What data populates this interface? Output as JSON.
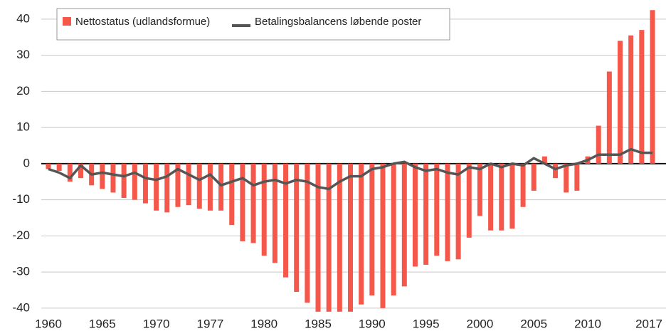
{
  "chart_data": {
    "type": "bar_line",
    "categories": [
      "1960",
      null,
      null,
      null,
      null,
      "1965",
      null,
      null,
      null,
      null,
      "1970",
      null,
      null,
      null,
      null,
      "1977",
      null,
      null,
      null,
      null,
      "1980",
      null,
      null,
      null,
      null,
      "1985",
      null,
      null,
      null,
      null,
      "1990",
      null,
      null,
      null,
      null,
      "1995",
      null,
      null,
      null,
      null,
      "2000",
      null,
      null,
      null,
      null,
      "2005",
      null,
      null,
      null,
      null,
      "2010",
      null,
      null,
      null,
      null,
      null,
      "2017"
    ],
    "series": [
      {
        "name": "Nettostatus (udlandsformue)",
        "type": "bar",
        "color": "#f5584a",
        "values": [
          -1.5,
          -2,
          -5,
          -4,
          -6,
          -7,
          -8,
          -9.5,
          -10,
          -11,
          -13,
          -13.5,
          -12,
          -11.5,
          -12.5,
          -13,
          -13,
          -17,
          -21.5,
          -22,
          -25.5,
          -27.5,
          -31.5,
          -35.5,
          -38.5,
          -41,
          -41,
          -41,
          -41,
          -39,
          -36.5,
          -40,
          -36.5,
          -34,
          -28.5,
          -28,
          -25.5,
          -27,
          -26.5,
          -20.5,
          -14.5,
          -18.5,
          -18.5,
          -18,
          -12,
          -7.5,
          2,
          -4,
          -8,
          -7.5,
          2,
          10.5,
          25.5,
          34,
          35.5,
          37,
          42.5
        ]
      },
      {
        "name": "Betalingsbalancens løbende poster",
        "type": "line",
        "color": "#555555",
        "values": [
          -1.5,
          -2.5,
          -4,
          -0.5,
          -3,
          -2.5,
          -3,
          -3.5,
          -2.5,
          -4,
          -4.5,
          -3.5,
          -1.5,
          -3,
          -4.5,
          -3,
          -6,
          -5,
          -4,
          -6,
          -5,
          -4.5,
          -5.5,
          -4.5,
          -5,
          -6.5,
          -7,
          -5,
          -3.5,
          -3.5,
          -1.5,
          -1,
          0,
          0.5,
          -1,
          -2,
          -1.5,
          -2.5,
          -3,
          -1,
          -1.5,
          0,
          -1,
          0,
          -0.5,
          1.5,
          0,
          -1.5,
          -0.5,
          0,
          1,
          2.5,
          2.5,
          2.5,
          4,
          3,
          3
        ]
      }
    ],
    "ylim": [
      -42.4,
      45.3
    ],
    "yticks": [
      -40,
      -30,
      -20,
      -10,
      0,
      10,
      20,
      30,
      40
    ],
    "grid": true
  }
}
